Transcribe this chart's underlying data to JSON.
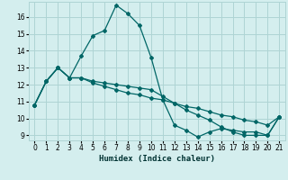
{
  "xlabel": "Humidex (Indice chaleur)",
  "xlim": [
    -0.5,
    21.5
  ],
  "ylim": [
    8.7,
    16.9
  ],
  "yticks": [
    9,
    10,
    11,
    12,
    13,
    14,
    15,
    16
  ],
  "xticks": [
    0,
    1,
    2,
    3,
    4,
    5,
    6,
    7,
    8,
    9,
    10,
    11,
    12,
    13,
    14,
    15,
    16,
    17,
    18,
    19,
    20,
    21
  ],
  "bg_color": "#d4eeee",
  "grid_color": "#aed4d4",
  "line_color": "#006666",
  "series": [
    {
      "x": [
        0,
        1,
        2,
        3,
        4,
        5,
        6,
        7,
        8,
        9,
        10,
        11,
        12,
        13,
        14,
        15,
        16,
        17,
        18,
        19,
        20,
        21
      ],
      "y": [
        10.8,
        12.2,
        13.0,
        12.4,
        13.7,
        14.9,
        15.2,
        16.7,
        16.2,
        15.5,
        13.6,
        11.1,
        9.6,
        9.3,
        8.9,
        9.2,
        9.4,
        9.3,
        9.2,
        9.2,
        9.0,
        10.1
      ],
      "marker": true
    },
    {
      "x": [
        0,
        1,
        2,
        3,
        4,
        5,
        6,
        7,
        8,
        9,
        10,
        11,
        12,
        13,
        14,
        15,
        16,
        17,
        18,
        19,
        20,
        21
      ],
      "y": [
        10.8,
        12.2,
        13.0,
        12.4,
        12.4,
        12.1,
        11.9,
        11.7,
        11.5,
        11.4,
        11.2,
        11.1,
        10.9,
        10.7,
        10.6,
        10.4,
        10.2,
        10.1,
        9.9,
        9.8,
        9.6,
        10.1
      ],
      "marker": true
    },
    {
      "x": [
        0,
        1,
        2,
        3,
        4,
        5,
        6,
        7,
        8,
        9,
        10,
        11,
        12,
        13,
        14,
        15,
        16,
        17,
        18,
        19,
        20,
        21
      ],
      "y": [
        10.8,
        12.2,
        13.0,
        12.4,
        12.4,
        12.2,
        12.1,
        12.0,
        11.9,
        11.8,
        11.7,
        11.3,
        10.9,
        10.5,
        10.2,
        9.9,
        9.5,
        9.2,
        9.0,
        9.0,
        9.0,
        10.1
      ],
      "marker": true
    }
  ]
}
